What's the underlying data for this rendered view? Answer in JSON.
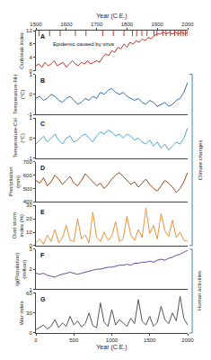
{
  "chart_data": [
    {
      "type": "line",
      "panel": "A",
      "y_label": "Outbreak index",
      "x_label": "Year (C.E.)",
      "color": "#c0392b",
      "grid": false,
      "x": [
        1500,
        1510,
        1520,
        1530,
        1540,
        1550,
        1560,
        1570,
        1580,
        1590,
        1600,
        1610,
        1620,
        1630,
        1640,
        1650,
        1660,
        1670,
        1680,
        1690,
        1700,
        1710,
        1720,
        1730,
        1740,
        1750,
        1760,
        1770,
        1780,
        1790,
        1800,
        1810,
        1820,
        1830,
        1840,
        1850,
        1860,
        1870,
        1880,
        1890,
        1900,
        1910,
        1920,
        1930,
        1940,
        1950,
        1960,
        1970,
        1980,
        1990,
        2000
      ],
      "values": [
        1.5,
        2,
        1,
        2.5,
        1.5,
        2,
        3,
        1.5,
        2,
        2.5,
        1,
        2,
        3,
        2,
        1.5,
        2.5,
        2,
        3,
        2,
        2.5,
        3,
        2.5,
        4,
        5,
        4.5,
        6,
        5.5,
        7,
        6.5,
        8,
        7,
        8.5,
        8,
        9,
        8.5,
        9.5,
        9,
        10,
        9.5,
        10.5,
        11,
        11,
        11.5,
        11,
        11.5,
        11,
        11.5,
        11,
        11.5,
        11,
        11.5
      ],
      "xlim": [
        1500,
        2000
      ],
      "xticks": [
        1500,
        1600,
        1700,
        1800,
        1900,
        2000
      ],
      "ylim": [
        0,
        12
      ],
      "yticks": [
        0,
        4,
        8,
        12
      ],
      "epidemic_years": [
        1510,
        1545,
        1580,
        1630,
        1665,
        1720,
        1755,
        1790,
        1818,
        1832,
        1849,
        1866,
        1889,
        1899,
        1918,
        1929,
        1943,
        1957,
        1968,
        1977,
        1985,
        1993,
        2000
      ],
      "annotations": [
        "Epidemic caused by virus"
      ]
    },
    {
      "type": "line",
      "panel": "B",
      "y_label": "Temperature-NH (°C)",
      "color": "#2f6fb0",
      "grid": false,
      "tick_labels": "y",
      "x": [
        0,
        50,
        100,
        150,
        200,
        250,
        300,
        350,
        400,
        450,
        500,
        550,
        600,
        650,
        700,
        750,
        800,
        850,
        900,
        950,
        1000,
        1050,
        1100,
        1150,
        1200,
        1250,
        1300,
        1350,
        1400,
        1450,
        1500,
        1550,
        1600,
        1650,
        1700,
        1750,
        1800,
        1850,
        1900,
        1950,
        2000
      ],
      "values": [
        -0.2,
        -0.1,
        -0.3,
        -0.2,
        0,
        -0.1,
        -0.3,
        -0.4,
        -0.2,
        -0.1,
        -0.3,
        -0.5,
        -0.4,
        -0.2,
        -0.3,
        -0.1,
        -0.2,
        0.1,
        0,
        0.2,
        0.3,
        0.1,
        0,
        0.1,
        -0.1,
        -0.2,
        -0.3,
        -0.2,
        -0.4,
        -0.5,
        -0.3,
        -0.4,
        -0.6,
        -0.5,
        -0.4,
        -0.6,
        -0.5,
        -0.3,
        -0.2,
        0.1,
        0.6
      ],
      "xlim": [
        0,
        2000
      ],
      "xticks": [
        0,
        500,
        1000,
        1500,
        2000
      ],
      "ylim": [
        -1,
        1
      ],
      "yticks": [
        -1,
        0,
        1
      ]
    },
    {
      "type": "line",
      "panel": "C",
      "y_label": "Temperature-CH (°C)",
      "color": "#4fa3d9",
      "grid": false,
      "tick_labels": "y",
      "x": [
        0,
        50,
        100,
        150,
        200,
        250,
        300,
        350,
        400,
        450,
        500,
        550,
        600,
        650,
        700,
        750,
        800,
        850,
        900,
        950,
        1000,
        1050,
        1100,
        1150,
        1200,
        1250,
        1300,
        1350,
        1400,
        1450,
        1500,
        1550,
        1600,
        1650,
        1700,
        1750,
        1800,
        1850,
        1900,
        1950,
        2000
      ],
      "values": [
        -0.3,
        -0.1,
        0.1,
        -0.2,
        0,
        0.2,
        -0.1,
        -0.3,
        0,
        0.1,
        -0.2,
        -0.1,
        0.1,
        0.2,
        0,
        -0.2,
        0.1,
        0.3,
        0.2,
        0.4,
        0.3,
        0.1,
        0.2,
        0,
        0.2,
        0.1,
        -0.1,
        0,
        -0.2,
        -0.3,
        -0.1,
        -0.4,
        -0.2,
        -0.5,
        -0.3,
        -0.6,
        -0.4,
        -0.2,
        -0.3,
        0,
        0.5
      ],
      "xlim": [
        0,
        2000
      ],
      "xticks": [
        0,
        500,
        1000,
        1500,
        2000
      ],
      "ylim": [
        -1,
        1
      ],
      "yticks": [
        -1,
        0,
        1
      ]
    },
    {
      "type": "line",
      "panel": "D",
      "y_label": "Precipitation (mm)",
      "color": "#9a4a1c",
      "grid": false,
      "tick_labels": "y",
      "x": [
        0,
        50,
        100,
        150,
        200,
        250,
        300,
        350,
        400,
        450,
        500,
        550,
        600,
        650,
        700,
        750,
        800,
        850,
        900,
        950,
        1000,
        1050,
        1100,
        1150,
        1200,
        1250,
        1300,
        1350,
        1400,
        1450,
        1500,
        1550,
        1600,
        1650,
        1700,
        1750,
        1800,
        1850,
        1900,
        1950,
        2000
      ],
      "values": [
        560,
        540,
        580,
        520,
        550,
        600,
        570,
        530,
        560,
        590,
        540,
        520,
        560,
        610,
        580,
        550,
        520,
        540,
        500,
        530,
        570,
        600,
        620,
        590,
        560,
        530,
        550,
        510,
        540,
        570,
        530,
        500,
        480,
        520,
        560,
        540,
        510,
        470,
        500,
        550,
        620
      ],
      "xlim": [
        0,
        2000
      ],
      "xticks": [
        0,
        500,
        1000,
        1500,
        2000
      ],
      "ylim": [
        400,
        700
      ],
      "yticks": [
        400,
        500,
        600,
        700
      ]
    },
    {
      "type": "line",
      "panel": "E",
      "y_label": "Dust storm index (%)",
      "color": "#f0913a",
      "grid": false,
      "tick_labels": "y",
      "x": [
        0,
        50,
        100,
        150,
        200,
        250,
        300,
        350,
        400,
        450,
        500,
        550,
        600,
        650,
        700,
        750,
        800,
        850,
        900,
        950,
        1000,
        1050,
        1100,
        1150,
        1200,
        1250,
        1300,
        1350,
        1400,
        1450,
        1500,
        1550,
        1600,
        1650,
        1700,
        1750,
        1800,
        1850,
        1900,
        1950,
        2000
      ],
      "values": [
        2,
        5,
        1,
        8,
        3,
        12,
        2,
        6,
        15,
        4,
        3,
        20,
        5,
        8,
        2,
        25,
        6,
        3,
        10,
        4,
        7,
        18,
        3,
        5,
        22,
        8,
        4,
        12,
        6,
        28,
        9,
        15,
        5,
        24,
        11,
        7,
        19,
        6,
        10,
        4,
        3
      ],
      "xlim": [
        0,
        2000
      ],
      "xticks": [
        0,
        500,
        1000,
        1500,
        2000
      ],
      "ylim": [
        0,
        30
      ],
      "yticks": [
        0,
        10,
        20,
        30
      ]
    },
    {
      "type": "line",
      "panel": "F",
      "y_label": "lg(Population) (million)",
      "color": "#6a4c9c",
      "grid": false,
      "tick_labels": "y",
      "x": [
        0,
        50,
        100,
        150,
        200,
        250,
        300,
        350,
        400,
        450,
        500,
        550,
        600,
        650,
        700,
        750,
        800,
        850,
        900,
        950,
        1000,
        1050,
        1100,
        1150,
        1200,
        1250,
        1300,
        1350,
        1400,
        1450,
        1500,
        1550,
        1600,
        1650,
        1700,
        1750,
        1800,
        1850,
        1900,
        1950,
        2000
      ],
      "values": [
        1.8,
        1.75,
        1.8,
        1.7,
        1.65,
        1.6,
        1.7,
        1.75,
        1.8,
        1.85,
        1.8,
        1.75,
        1.8,
        1.85,
        1.9,
        1.95,
        2.0,
        2.0,
        2.05,
        2.1,
        2.1,
        2.15,
        2.2,
        2.2,
        2.25,
        2.2,
        2.3,
        2.3,
        2.35,
        2.35,
        2.4,
        2.35,
        2.45,
        2.5,
        2.45,
        2.55,
        2.6,
        2.7,
        2.75,
        2.85,
        2.95
      ],
      "xlim": [
        0,
        2000
      ],
      "xticks": [
        0,
        500,
        1000,
        1500,
        2000
      ],
      "ylim": [
        1,
        3
      ],
      "yticks": [
        1,
        2,
        3
      ]
    },
    {
      "type": "line",
      "panel": "G",
      "y_label": "War index",
      "x_label": "Year (C.E.)",
      "color": "#555555",
      "grid": false,
      "x": [
        0,
        50,
        100,
        150,
        200,
        250,
        300,
        350,
        400,
        450,
        500,
        550,
        600,
        650,
        700,
        750,
        800,
        850,
        900,
        950,
        1000,
        1050,
        1100,
        1150,
        1200,
        1250,
        1300,
        1350,
        1400,
        1450,
        1500,
        1550,
        1600,
        1650,
        1700,
        1750,
        1800,
        1850,
        1900,
        1950,
        2000
      ],
      "values": [
        5,
        8,
        12,
        6,
        10,
        20,
        8,
        15,
        10,
        25,
        12,
        18,
        9,
        14,
        30,
        11,
        8,
        45,
        16,
        10,
        35,
        12,
        20,
        15,
        10,
        22,
        14,
        50,
        18,
        12,
        25,
        10,
        16,
        40,
        20,
        14,
        30,
        18,
        55,
        22,
        12
      ],
      "xlim": [
        0,
        2000
      ],
      "xticks": [
        0,
        500,
        1000,
        1500,
        2000
      ],
      "ylim": [
        0,
        60
      ],
      "yticks": [
        0,
        30,
        60
      ]
    }
  ],
  "groups": [
    {
      "label": "Climate changes",
      "panels": [
        "B",
        "C",
        "D",
        "E"
      ]
    },
    {
      "label": "Human activities",
      "panels": [
        "F",
        "G"
      ]
    }
  ]
}
